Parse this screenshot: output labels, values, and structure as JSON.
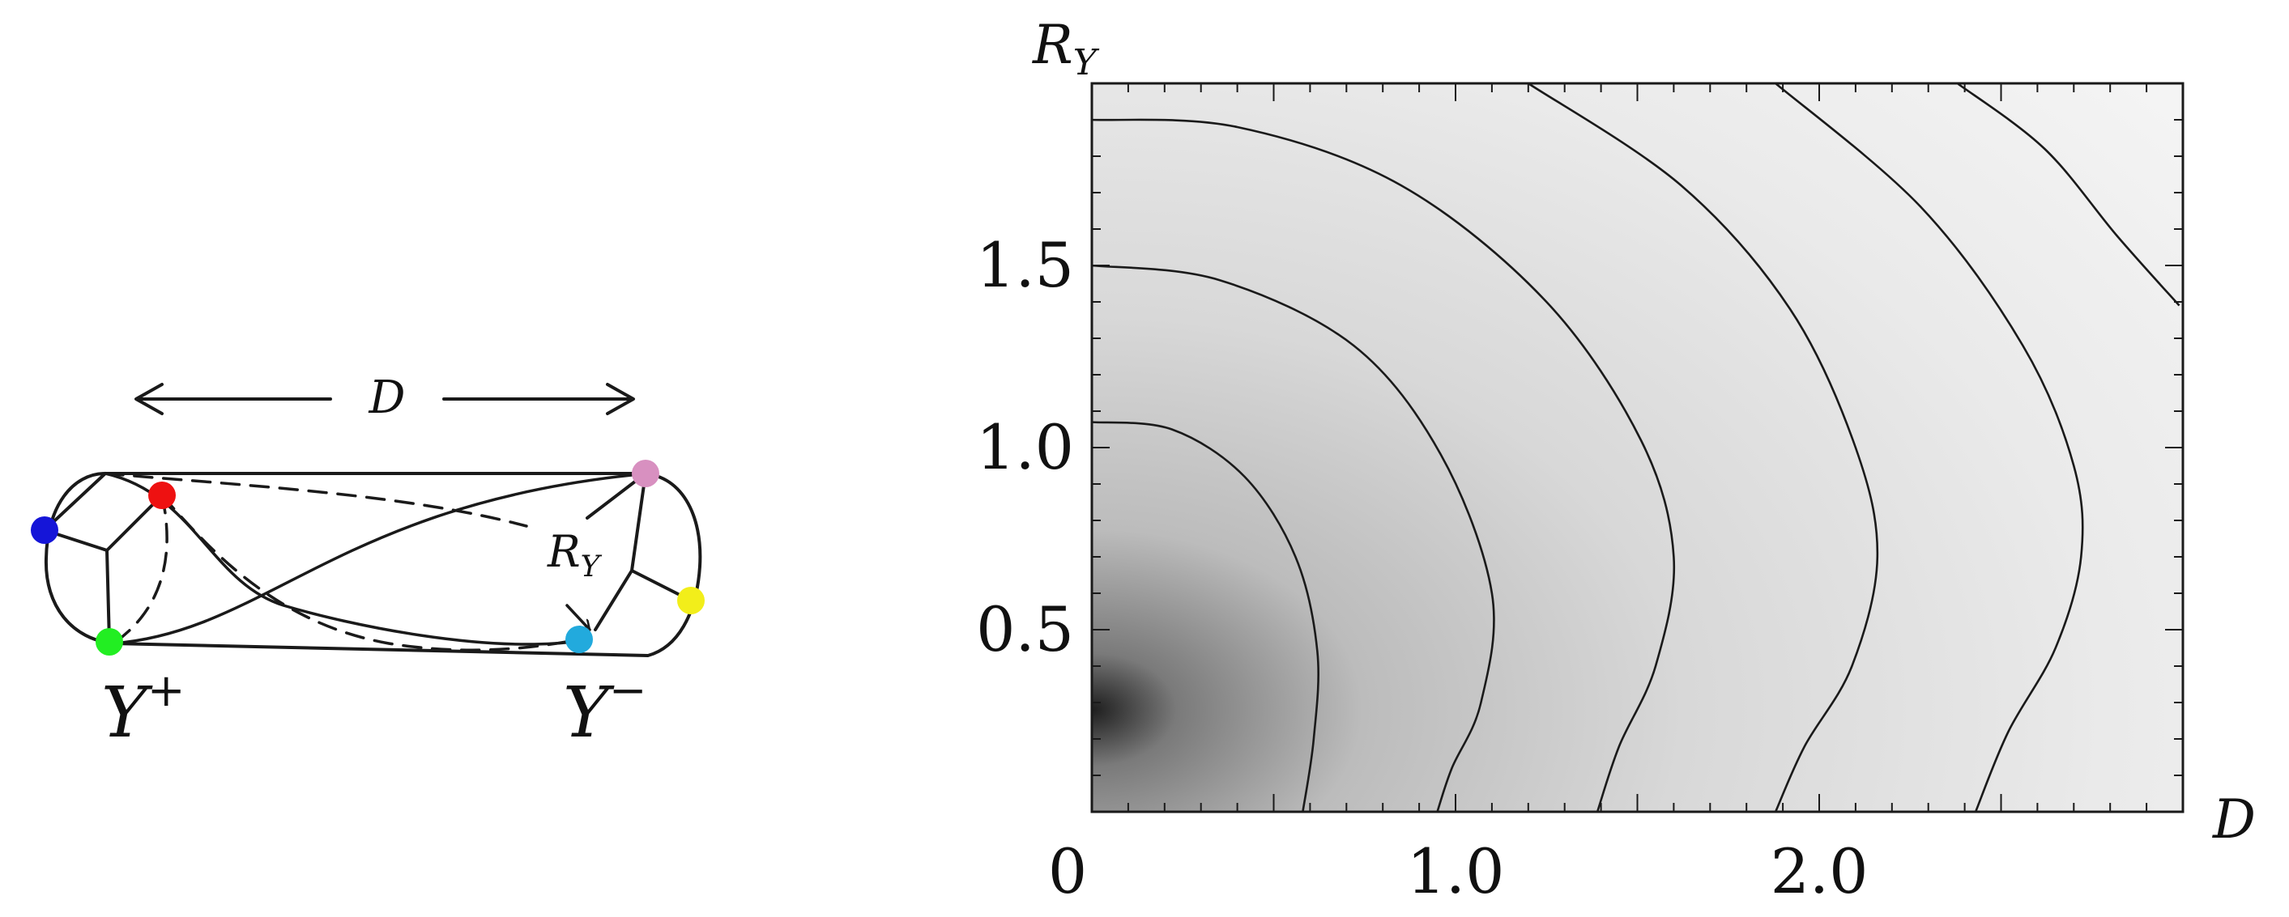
{
  "diagram": {
    "distance_label": "D",
    "radius_label_base": "R",
    "radius_label_sub": "Y",
    "left_junction_base": "Y",
    "left_junction_sup": "+",
    "right_junction_base": "Y",
    "right_junction_sup": "−",
    "dot_colors": {
      "blue": "#1515d8",
      "red": "#ee1111",
      "green": "#22ee22",
      "pink": "#d890c0",
      "yellow": "#f2ee1a",
      "cyan": "#22aadd"
    }
  },
  "chart_data": {
    "type": "heatmap",
    "title": "",
    "xlabel": "D",
    "ylabel_base": "R",
    "ylabel_sub": "Y",
    "xlim": [
      0,
      3.0
    ],
    "ylim": [
      0,
      2.0
    ],
    "x_ticks": [
      {
        "value": 0,
        "label": "0"
      },
      {
        "value": 1.0,
        "label": "1.0"
      },
      {
        "value": 2.0,
        "label": "2.0"
      }
    ],
    "y_ticks": [
      {
        "value": 0.5,
        "label": "0.5"
      },
      {
        "value": 1.0,
        "label": "1.0"
      },
      {
        "value": 1.5,
        "label": "1.5"
      }
    ],
    "minor_step": 0.1,
    "colormap": "grayscale (dark at low D, white at high D)",
    "contours": [
      {
        "points": [
          [
            0.0,
            1.07
          ],
          [
            0.22,
            1.05
          ],
          [
            0.42,
            0.92
          ],
          [
            0.56,
            0.7
          ],
          [
            0.62,
            0.44
          ],
          [
            0.61,
            0.2
          ],
          [
            0.58,
            0.0
          ]
        ]
      },
      {
        "points": [
          [
            0.0,
            1.5
          ],
          [
            0.35,
            1.46
          ],
          [
            0.72,
            1.28
          ],
          [
            0.96,
            0.98
          ],
          [
            1.1,
            0.6
          ],
          [
            1.07,
            0.3
          ],
          [
            0.99,
            0.12
          ],
          [
            0.95,
            0.0
          ]
        ]
      },
      {
        "points": [
          [
            0.0,
            1.9
          ],
          [
            0.4,
            1.88
          ],
          [
            0.85,
            1.72
          ],
          [
            1.25,
            1.4
          ],
          [
            1.51,
            1.02
          ],
          [
            1.6,
            0.7
          ],
          [
            1.55,
            0.4
          ],
          [
            1.45,
            0.18
          ],
          [
            1.39,
            0.0
          ]
        ]
      },
      {
        "points": [
          [
            1.2,
            2.0
          ],
          [
            1.62,
            1.72
          ],
          [
            1.92,
            1.38
          ],
          [
            2.1,
            1.0
          ],
          [
            2.16,
            0.7
          ],
          [
            2.09,
            0.4
          ],
          [
            1.96,
            0.18
          ],
          [
            1.88,
            0.0
          ]
        ]
      },
      {
        "points": [
          [
            1.88,
            2.0
          ],
          [
            2.28,
            1.66
          ],
          [
            2.56,
            1.28
          ],
          [
            2.7,
            0.95
          ],
          [
            2.72,
            0.7
          ],
          [
            2.65,
            0.45
          ],
          [
            2.52,
            0.22
          ],
          [
            2.43,
            0.0
          ]
        ]
      },
      {
        "points": [
          [
            2.38,
            2.0
          ],
          [
            2.62,
            1.82
          ],
          [
            2.82,
            1.58
          ],
          [
            2.99,
            1.39
          ]
        ]
      }
    ]
  }
}
